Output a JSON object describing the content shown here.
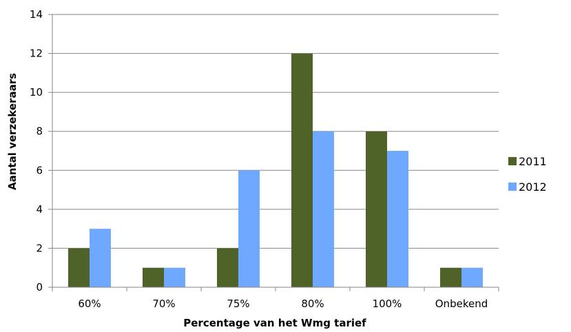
{
  "chart_data": {
    "type": "bar",
    "categories": [
      "60%",
      "70%",
      "75%",
      "80%",
      "100%",
      "Onbekend"
    ],
    "series": [
      {
        "name": "2011",
        "values": [
          2,
          1,
          2,
          12,
          8,
          1
        ],
        "color": "#4F6228"
      },
      {
        "name": "2012",
        "values": [
          3,
          1,
          6,
          8,
          7,
          1
        ],
        "color": "#6FA8FF"
      }
    ],
    "xlabel": "Percentage van het Wmg tarief",
    "ylabel": "Aantal verzekeraars",
    "ylim": [
      0,
      14
    ],
    "yticks": [
      "0",
      "2",
      "4",
      "6",
      "8",
      "10",
      "12",
      "14"
    ],
    "grid": true,
    "legend_position": "right"
  }
}
